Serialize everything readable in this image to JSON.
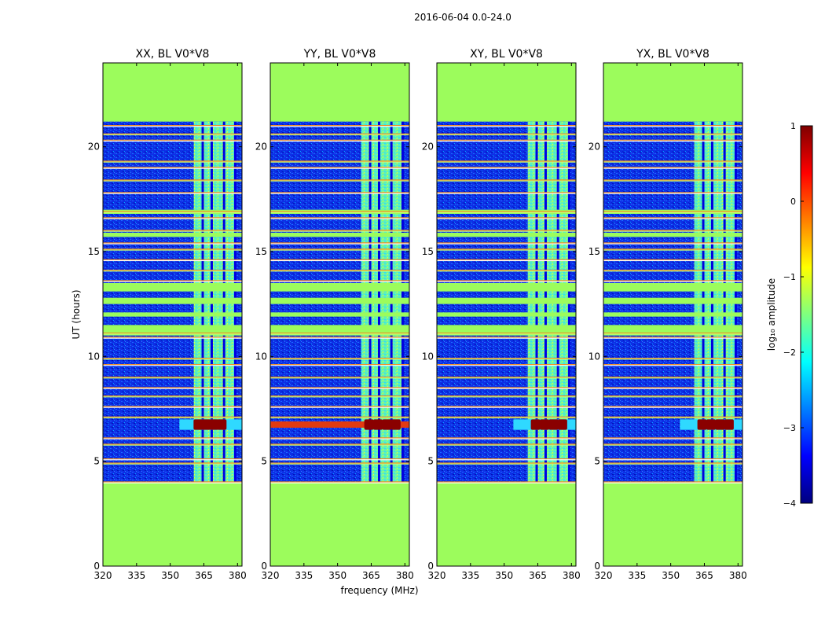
{
  "chart_data": {
    "type": "heatmap",
    "suptitle": "2016-06-04 0.0-24.0",
    "xlabel": "frequency (MHz)",
    "ylabel": "UT (hours)",
    "xlim": [
      320,
      382
    ],
    "ylim": [
      0,
      24
    ],
    "xticks": [
      "320",
      "335",
      "350",
      "365",
      "380"
    ],
    "xtick_values": [
      320,
      335,
      350,
      365,
      380
    ],
    "yticks": [
      "0",
      "5",
      "10",
      "15",
      "20"
    ],
    "ytick_values": [
      0,
      5,
      10,
      15,
      20
    ],
    "colorbar": {
      "label": "log₁₀ amplitude",
      "range": [
        -4,
        1
      ],
      "ticks": [
        "1",
        "0",
        "−1",
        "−2",
        "−3",
        "−4"
      ],
      "tick_values": [
        1,
        0,
        -1,
        -2,
        -3,
        -4
      ],
      "colormap": [
        "#00007f",
        "#0000ff",
        "#007fff",
        "#00ffff",
        "#7fff7f",
        "#ffff00",
        "#ff7f00",
        "#ff0000",
        "#7f0000"
      ]
    },
    "data_hours": [
      4.0,
      21.2
    ],
    "flagged_fill": "#9cfc5c",
    "bright_band_MHz": [
      360.5,
      379
    ],
    "channel_gaps_MHz": [
      364.5,
      368.5,
      374,
      379
    ],
    "rfi_line_hours": [
      4.0,
      4.9,
      5.1,
      5.8,
      6.1,
      7.1,
      7.6,
      8.1,
      8.5,
      9.0,
      9.6,
      9.9,
      10.9,
      11.1,
      13.6,
      14.1,
      14.6,
      15.1,
      15.4,
      16.0,
      16.6,
      16.9,
      17.8,
      18.4,
      19.0,
      19.3,
      20.3,
      20.6,
      21.0
    ],
    "flagged_row_hours": [
      [
        11.0,
        11.5
      ],
      [
        11.9,
        12.1
      ],
      [
        12.5,
        12.8
      ],
      [
        13.1,
        13.5
      ],
      [
        15.7,
        15.9
      ],
      [
        16.8,
        17.0
      ]
    ],
    "panels": [
      {
        "title": "XX, BL V0*V8",
        "strong_rows": [
          [
            6.5,
            7.0
          ]
        ],
        "saturated_cells": [
          362.5,
          366,
          369.5,
          373
        ]
      },
      {
        "title": "YY, BL V0*V8",
        "strong_rows": [
          [
            6.6,
            6.9
          ]
        ],
        "saturated_cells": [
          364,
          368,
          372,
          376
        ]
      },
      {
        "title": "XY, BL V0*V8",
        "strong_rows": [
          [
            6.5,
            7.0
          ]
        ],
        "saturated_cells": [
          364,
          368,
          372,
          376
        ]
      },
      {
        "title": "YX, BL V0*V8",
        "strong_rows": [
          [
            6.5,
            7.0
          ]
        ],
        "saturated_cells": [
          364,
          368,
          372,
          376
        ]
      }
    ]
  }
}
